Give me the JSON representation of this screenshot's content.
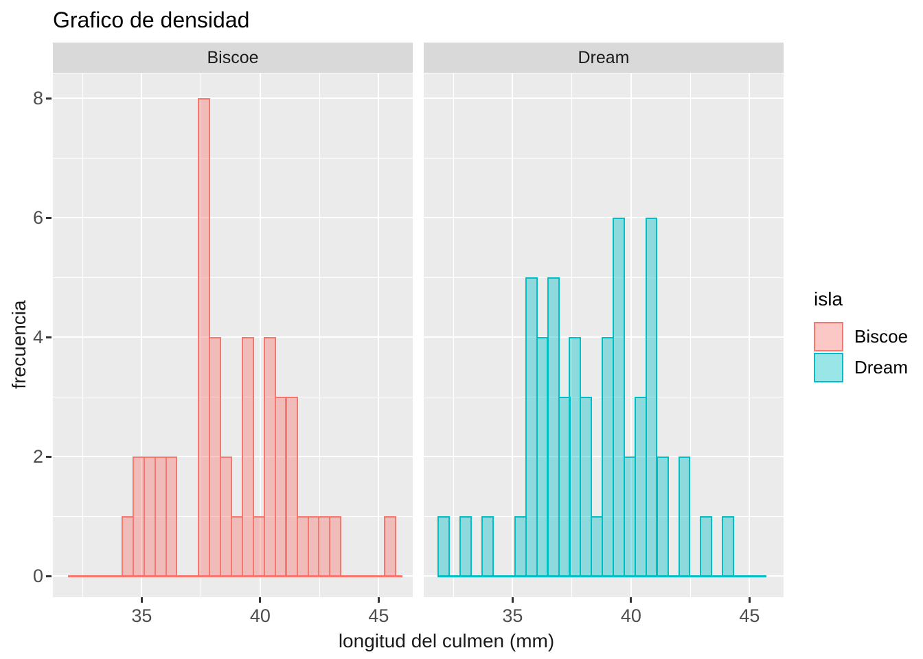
{
  "title": "Grafico de densidad",
  "axes": {
    "x_title": "longitud del culmen (mm)",
    "y_title": "frecuencia",
    "x_tick_labels": [
      "35",
      "40",
      "45"
    ],
    "y_tick_labels": [
      "0",
      "2",
      "4",
      "6",
      "8"
    ]
  },
  "legend": {
    "title": "isla",
    "items": [
      {
        "label": "Biscoe",
        "color": "#F8766D",
        "fill": "rgba(248,118,109,0.4)"
      },
      {
        "label": "Dream",
        "color": "#00BFC4",
        "fill": "rgba(0,191,196,0.4)"
      }
    ]
  },
  "colors": {
    "panel_background": "#EBEBEB",
    "strip_background": "#D9D9D9",
    "gridline": "#FFFFFF",
    "tick_mark": "#333333",
    "tick_label": "#4D4D4D",
    "biscoe": "#F8766D",
    "dream": "#00BFC4"
  },
  "chart_data": {
    "type": "bar",
    "subtype": "faceted-histogram",
    "title": "Grafico de densidad",
    "xlabel": "longitud del culmen (mm)",
    "ylabel": "frecuencia",
    "legend_title": "isla",
    "legend_position": "right",
    "grid": "on",
    "x_ticks": [
      35,
      40,
      45
    ],
    "x_minor_ticks": [
      32.5,
      37.5,
      42.5
    ],
    "y_ticks": [
      0,
      2,
      4,
      6,
      8
    ],
    "y_minor_ticks": [
      1,
      3,
      5,
      7
    ],
    "xlim": [
      31.25,
      46.45
    ],
    "ylim": [
      -0.36,
      8.41
    ],
    "binwidth": 0.46,
    "facets": [
      {
        "name": "Biscoe",
        "color": "#F8766D",
        "fill": "rgba(248,118,109,0.4)",
        "total_count": 44,
        "baseline_extent": [
          31.9,
          46.0
        ],
        "bars": [
          {
            "x": 34.41,
            "n": 1
          },
          {
            "x": 34.87,
            "n": 2
          },
          {
            "x": 35.33,
            "n": 2
          },
          {
            "x": 35.79,
            "n": 2
          },
          {
            "x": 36.25,
            "n": 2
          },
          {
            "x": 37.63,
            "n": 8
          },
          {
            "x": 38.09,
            "n": 4
          },
          {
            "x": 38.55,
            "n": 2
          },
          {
            "x": 39.02,
            "n": 1
          },
          {
            "x": 39.48,
            "n": 4
          },
          {
            "x": 39.94,
            "n": 1
          },
          {
            "x": 40.4,
            "n": 4
          },
          {
            "x": 40.86,
            "n": 3
          },
          {
            "x": 41.33,
            "n": 3
          },
          {
            "x": 41.79,
            "n": 1
          },
          {
            "x": 42.25,
            "n": 1
          },
          {
            "x": 42.71,
            "n": 1
          },
          {
            "x": 43.17,
            "n": 1
          },
          {
            "x": 45.47,
            "n": 1
          }
        ]
      },
      {
        "name": "Dream",
        "color": "#00BFC4",
        "fill": "rgba(0,191,196,0.4)",
        "total_count": 56,
        "baseline_extent": [
          31.9,
          45.7
        ],
        "bars": [
          {
            "x": 32.1,
            "n": 1
          },
          {
            "x": 33.02,
            "n": 1
          },
          {
            "x": 33.95,
            "n": 1
          },
          {
            "x": 35.33,
            "n": 1
          },
          {
            "x": 35.79,
            "n": 5
          },
          {
            "x": 36.25,
            "n": 4
          },
          {
            "x": 36.72,
            "n": 5
          },
          {
            "x": 37.18,
            "n": 3
          },
          {
            "x": 37.63,
            "n": 4
          },
          {
            "x": 38.09,
            "n": 3
          },
          {
            "x": 38.55,
            "n": 1
          },
          {
            "x": 39.02,
            "n": 4
          },
          {
            "x": 39.48,
            "n": 6
          },
          {
            "x": 39.94,
            "n": 2
          },
          {
            "x": 40.4,
            "n": 3
          },
          {
            "x": 40.86,
            "n": 6
          },
          {
            "x": 41.33,
            "n": 2
          },
          {
            "x": 42.25,
            "n": 2
          },
          {
            "x": 43.17,
            "n": 1
          },
          {
            "x": 44.09,
            "n": 1
          }
        ]
      }
    ]
  }
}
